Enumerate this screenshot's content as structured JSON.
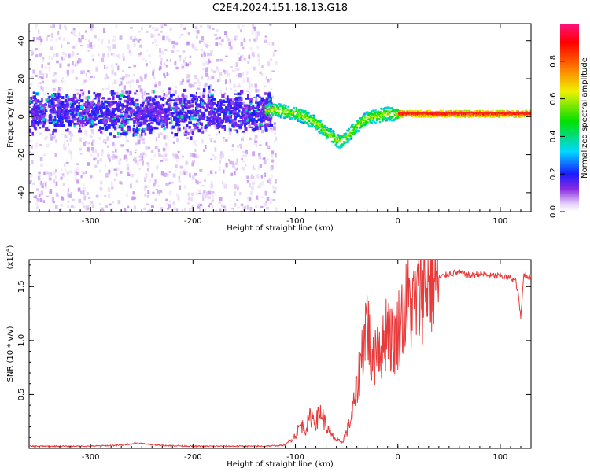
{
  "title": "C2E4.2024.151.18.13.G18",
  "chart_data": [
    {
      "type": "heatmap",
      "xlabel": "Height of straight line (km)",
      "ylabel": "Frequency (Hz)",
      "xlim": [
        -360,
        130
      ],
      "ylim": [
        -50,
        49
      ],
      "xticks": [
        -300,
        -200,
        -100,
        0,
        100
      ],
      "yticks": [
        -40,
        -20,
        0,
        20,
        40
      ],
      "trace": {
        "x": [
          -130,
          -120,
          -110,
          -100,
          -90,
          -80,
          -70,
          -60,
          -55,
          -50,
          -40,
          -30,
          -20,
          -10,
          0,
          20,
          50,
          80,
          100,
          130
        ],
        "y": [
          4,
          4,
          3,
          2,
          0,
          -3,
          -8,
          -12,
          -13,
          -10,
          -4,
          0,
          1,
          2,
          2,
          2,
          2,
          2,
          2,
          2
        ]
      },
      "colorbar": {
        "label": "Normalized spectral amplitude",
        "range": [
          0,
          1
        ],
        "ticks": [
          0.0,
          0.2,
          0.4,
          0.6,
          0.8
        ]
      }
    },
    {
      "type": "line",
      "xlabel": "Height of straight line (km)",
      "ylabel": "SNR (10 * v/v)",
      "scale_label": "(x10",
      "scale_exp": "4",
      "scale_close": ")",
      "xlim": [
        -360,
        130
      ],
      "ylim": [
        0,
        1.75
      ],
      "xticks": [
        -300,
        -200,
        -100,
        0,
        100
      ],
      "yticks": [
        0.5,
        1.0,
        1.5
      ],
      "ytick_labels": [
        "0.5",
        "1.0",
        "1.5"
      ],
      "series": [
        {
          "name": "SNR",
          "color": "#e83a3a",
          "x": [
            -360,
            -330,
            -300,
            -270,
            -255,
            -245,
            -235,
            -200,
            -160,
            -130,
            -110,
            -100,
            -95,
            -90,
            -85,
            -80,
            -75,
            -70,
            -65,
            -60,
            -55,
            -50,
            -45,
            -40,
            -35,
            -30,
            -25,
            -20,
            -15,
            -10,
            -5,
            0,
            5,
            10,
            15,
            20,
            25,
            30,
            40,
            50,
            60,
            70,
            80,
            90,
            100,
            110,
            115,
            118,
            120,
            123,
            126,
            130
          ],
          "values": [
            0.02,
            0.02,
            0.02,
            0.03,
            0.05,
            0.04,
            0.03,
            0.02,
            0.02,
            0.02,
            0.03,
            0.12,
            0.22,
            0.18,
            0.3,
            0.25,
            0.35,
            0.2,
            0.12,
            0.08,
            0.05,
            0.15,
            0.3,
            0.55,
            0.9,
            1.25,
            0.7,
            1.05,
            0.9,
            1.2,
            0.95,
            1.1,
            1.25,
            1.35,
            1.3,
            1.4,
            1.5,
            1.55,
            1.58,
            1.62,
            1.63,
            1.6,
            1.62,
            1.6,
            1.6,
            1.58,
            1.55,
            1.4,
            1.2,
            1.62,
            1.6,
            1.58
          ]
        }
      ]
    }
  ]
}
